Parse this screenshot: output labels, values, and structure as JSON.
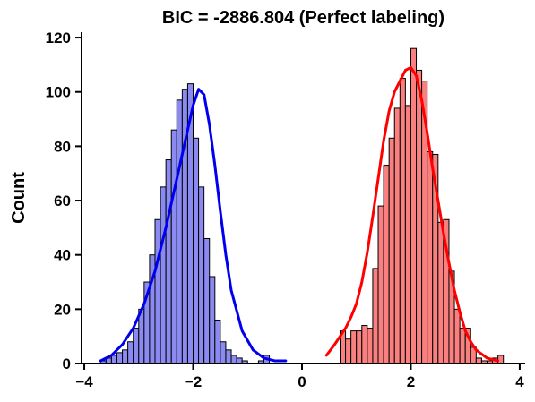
{
  "chart_data": {
    "type": "histogram",
    "title": "BIC = -2886.804 (Perfect labeling)",
    "xlabel": "",
    "ylabel": "Count",
    "xlim": [
      -4.05,
      4.1
    ],
    "ylim": [
      0,
      122
    ],
    "x_ticks": [
      -4,
      -2,
      0,
      2,
      4
    ],
    "y_ticks": [
      0,
      20,
      40,
      60,
      80,
      100,
      120
    ],
    "grid": false,
    "legend": "none",
    "series": [
      {
        "color": "#0000ee",
        "fill": "#8a8af0",
        "bin_start": -3.7,
        "bin_width": 0.1,
        "counts": [
          1,
          2,
          3,
          4,
          5,
          8,
          13,
          20,
          30,
          40,
          53,
          65,
          75,
          86,
          97,
          101,
          103,
          83,
          65,
          46,
          32,
          16,
          8,
          5,
          3,
          2,
          1,
          0,
          0,
          1,
          3
        ],
        "kde": [
          [
            -3.7,
            1
          ],
          [
            -3.5,
            3
          ],
          [
            -3.3,
            7
          ],
          [
            -3.1,
            13
          ],
          [
            -2.9,
            22
          ],
          [
            -2.7,
            34
          ],
          [
            -2.5,
            50
          ],
          [
            -2.3,
            68
          ],
          [
            -2.1,
            86
          ],
          [
            -2.0,
            95
          ],
          [
            -1.9,
            101
          ],
          [
            -1.8,
            99
          ],
          [
            -1.7,
            88
          ],
          [
            -1.6,
            73
          ],
          [
            -1.5,
            56
          ],
          [
            -1.4,
            40
          ],
          [
            -1.3,
            27
          ],
          [
            -1.1,
            12
          ],
          [
            -0.9,
            5
          ],
          [
            -0.7,
            2
          ],
          [
            -0.5,
            1
          ],
          [
            -0.3,
            1
          ]
        ]
      },
      {
        "color": "#ff0000",
        "fill": "#fa8080",
        "bin_start": 0.7,
        "bin_width": 0.1,
        "counts": [
          12,
          9,
          12,
          12,
          14,
          13,
          35,
          58,
          73,
          83,
          94,
          105,
          95,
          116,
          108,
          104,
          78,
          77,
          52,
          53,
          34,
          20,
          13,
          13,
          6,
          2,
          1,
          1,
          2,
          3
        ],
        "kde": [
          [
            0.45,
            3
          ],
          [
            0.6,
            7
          ],
          [
            0.8,
            13
          ],
          [
            0.9,
            17
          ],
          [
            1.0,
            22
          ],
          [
            1.1,
            30
          ],
          [
            1.2,
            41
          ],
          [
            1.3,
            54
          ],
          [
            1.4,
            68
          ],
          [
            1.5,
            82
          ],
          [
            1.6,
            93
          ],
          [
            1.7,
            100
          ],
          [
            1.8,
            104
          ],
          [
            1.9,
            108
          ],
          [
            2.0,
            109
          ],
          [
            2.1,
            106
          ],
          [
            2.2,
            97
          ],
          [
            2.3,
            85
          ],
          [
            2.4,
            72
          ],
          [
            2.5,
            60
          ],
          [
            2.6,
            48
          ],
          [
            2.7,
            37
          ],
          [
            2.8,
            27
          ],
          [
            2.9,
            19
          ],
          [
            3.0,
            12
          ],
          [
            3.1,
            8
          ],
          [
            3.2,
            5
          ],
          [
            3.4,
            2
          ],
          [
            3.6,
            1
          ]
        ]
      }
    ]
  }
}
